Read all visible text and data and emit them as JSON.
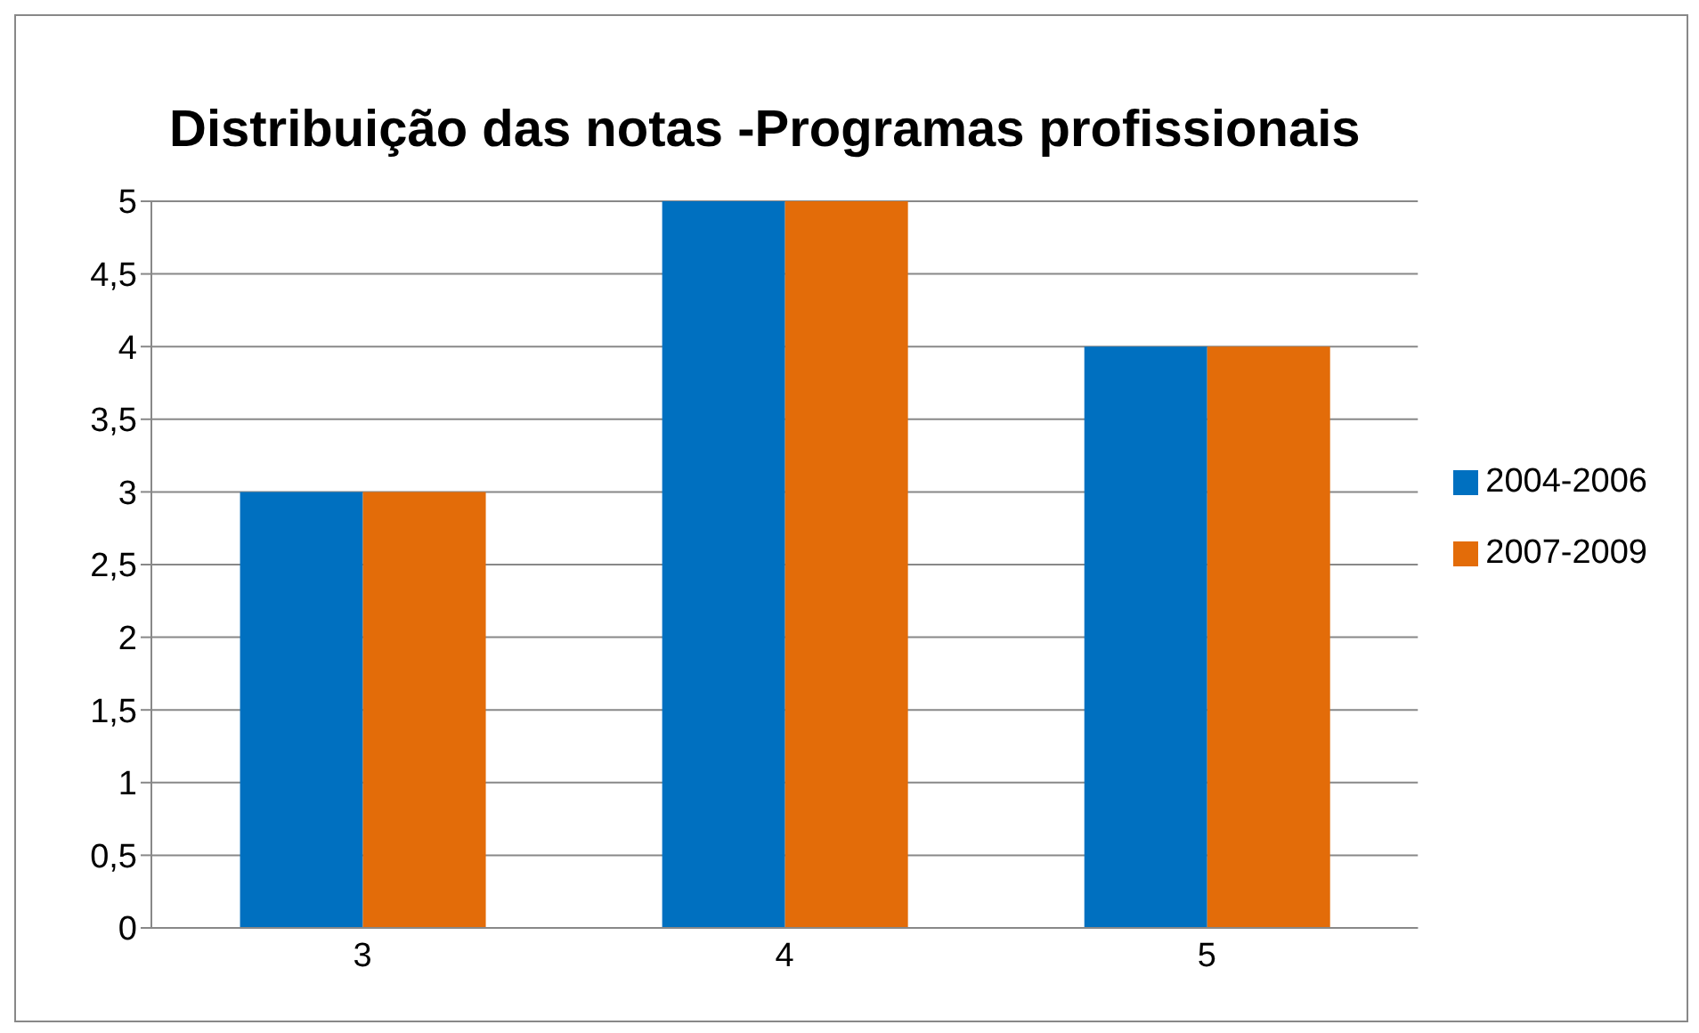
{
  "chart_data": {
    "type": "bar",
    "title": "Distribuição das notas -Programas profissionais",
    "categories": [
      "3",
      "4",
      "5"
    ],
    "series": [
      {
        "name": "2004-2006",
        "color": "#0070c0",
        "values": [
          3,
          5,
          4
        ]
      },
      {
        "name": "2007-2009",
        "color": "#e36c09",
        "values": [
          3,
          5,
          4
        ]
      }
    ],
    "ylim": [
      0,
      5
    ],
    "yticks": [
      0,
      {
        "value": 0.5,
        "label": "0,5"
      },
      1,
      {
        "value": 1.5,
        "label": "1,5"
      },
      2,
      {
        "value": 2.5,
        "label": "2,5"
      },
      3,
      {
        "value": 3.5,
        "label": "3,5"
      },
      4,
      {
        "value": 4.5,
        "label": "4,5"
      },
      5
    ],
    "grid": "y",
    "legend": "right"
  }
}
